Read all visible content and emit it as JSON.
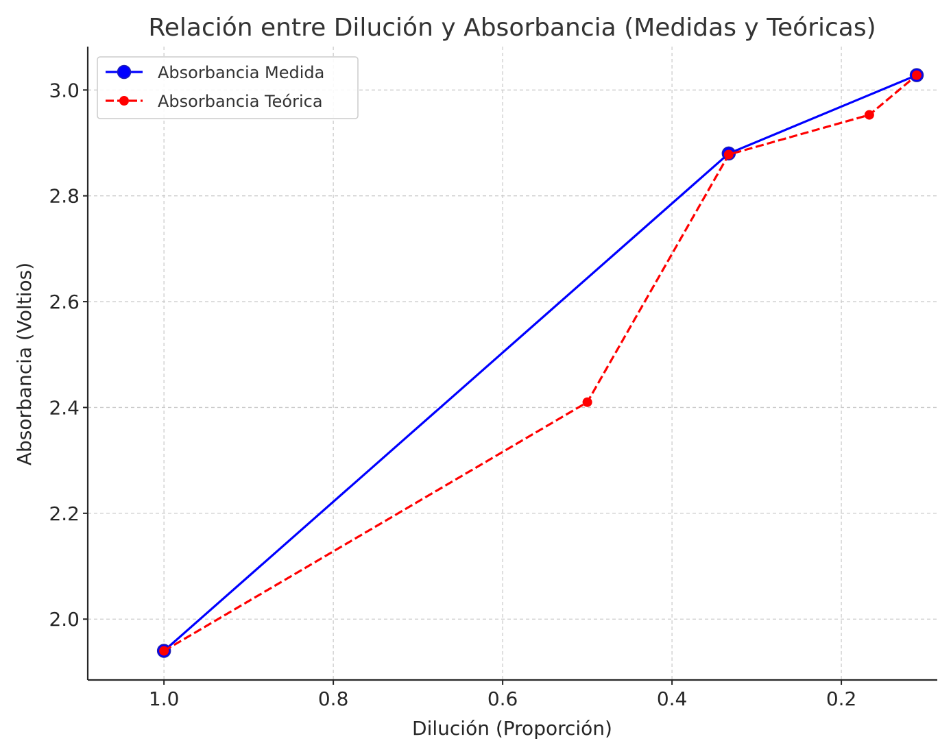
{
  "chart_data": {
    "type": "line",
    "title": "Relación entre Dilución y Absorbancia (Medidas y Teóricas)",
    "xlabel": "Dilución (Proporción)",
    "ylabel": "Absorbancia (Voltios)",
    "x_inverted": true,
    "xlim": [
      1.09,
      0.0867
    ],
    "ylim": [
      1.885,
      3.082
    ],
    "x_ticks": [
      1.0,
      0.8,
      0.6,
      0.4,
      0.2
    ],
    "x_tick_labels": [
      "1.0",
      "0.8",
      "0.6",
      "0.4",
      "0.2"
    ],
    "y_ticks": [
      2.0,
      2.2,
      2.4,
      2.6,
      2.8,
      3.0
    ],
    "y_tick_labels": [
      "2.0",
      "2.2",
      "2.4",
      "2.6",
      "2.8",
      "3.0"
    ],
    "grid": true,
    "legend_position": "top-left",
    "series": [
      {
        "name": "Absorbancia Medida",
        "color": "#0000ff",
        "line_style": "solid",
        "marker": "circle-large",
        "x": [
          1.0,
          0.333,
          0.111
        ],
        "y": [
          1.94,
          2.88,
          3.028
        ]
      },
      {
        "name": "Absorbancia Teórica",
        "color": "#ff0000",
        "line_style": "dashed",
        "marker": "circle-small",
        "x": [
          1.0,
          0.5,
          0.333,
          0.167,
          0.111
        ],
        "y": [
          1.94,
          2.41,
          2.878,
          2.953,
          3.028
        ]
      }
    ]
  }
}
